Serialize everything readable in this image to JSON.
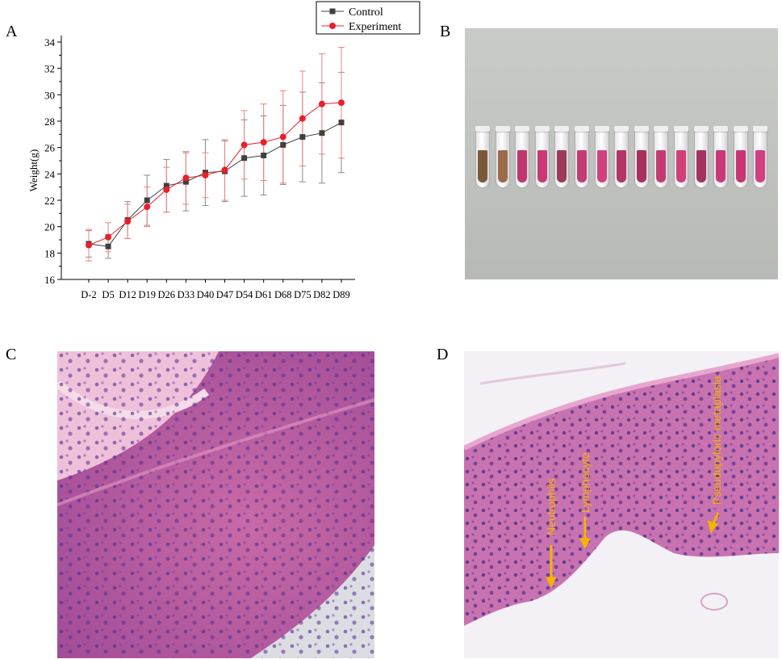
{
  "panels": {
    "a": "A",
    "b": "B",
    "c": "C",
    "d": "D"
  },
  "colors": {
    "control": "#404040",
    "experiment": "#e8202a",
    "control_error": "#8a8a8a",
    "experiment_error": "#f08080",
    "annotation": "#f5b400"
  },
  "chart_data": {
    "type": "line",
    "ylabel": "Weight(g)",
    "xlabel": "",
    "x": [
      "D-2",
      "D5",
      "D12",
      "D19",
      "D26",
      "D33",
      "D40",
      "D47",
      "D54",
      "D61",
      "D68",
      "D75",
      "D82",
      "D89"
    ],
    "ylim": [
      16,
      34
    ],
    "yticks": [
      16,
      18,
      20,
      22,
      24,
      26,
      28,
      30,
      32,
      34
    ],
    "legend": "top-right",
    "series": [
      {
        "name": "Control",
        "marker": "square",
        "values": [
          18.7,
          18.5,
          20.5,
          22.0,
          23.1,
          23.4,
          24.1,
          24.2,
          25.2,
          25.4,
          26.2,
          26.8,
          27.1,
          27.9
        ],
        "err": [
          1.0,
          0.9,
          1.4,
          1.9,
          2.0,
          2.2,
          2.5,
          2.3,
          2.9,
          3.0,
          3.0,
          3.4,
          3.8,
          3.8
        ]
      },
      {
        "name": "Experiment",
        "marker": "circle",
        "values": [
          18.6,
          19.2,
          20.4,
          21.5,
          22.8,
          23.7,
          23.9,
          24.3,
          26.2,
          26.4,
          26.8,
          28.2,
          29.3,
          29.4
        ],
        "err": [
          1.2,
          1.1,
          1.3,
          1.5,
          1.7,
          2.0,
          1.7,
          2.3,
          2.6,
          2.9,
          3.5,
          3.6,
          3.8,
          4.2
        ]
      }
    ]
  },
  "histology": {
    "d_labels": [
      "Neutrophils",
      "Lymphocyte",
      "Pseudopyloric metaplasia"
    ]
  }
}
